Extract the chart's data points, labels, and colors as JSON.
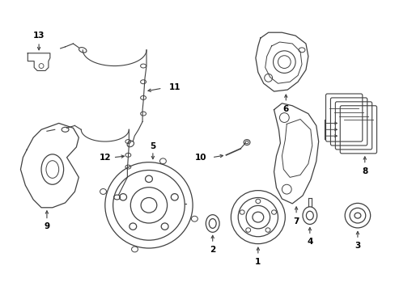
{
  "bg_color": "#ffffff",
  "line_color": "#404040",
  "figsize": [
    4.89,
    3.6
  ],
  "dpi": 100,
  "label_fontsize": 7.5
}
